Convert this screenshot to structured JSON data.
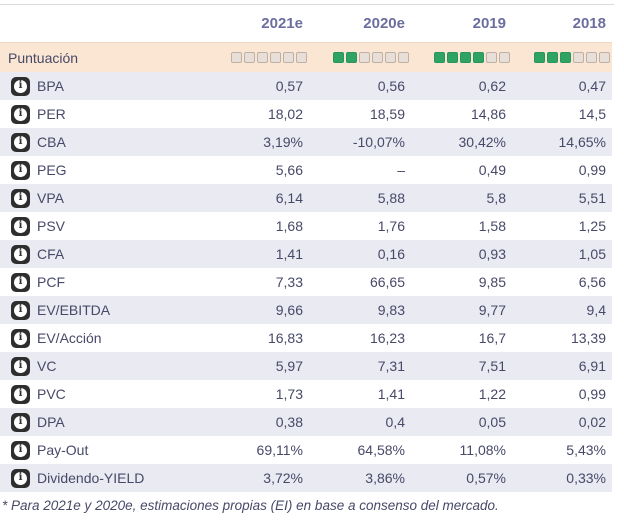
{
  "table": {
    "columns": [
      "2021e",
      "2020e",
      "2019",
      "2018"
    ],
    "score_row": {
      "label": "Puntuación",
      "max_squares": 6,
      "filled": [
        0,
        2,
        4,
        3
      ]
    },
    "rows": [
      {
        "label": "BPA",
        "values": [
          "0,57",
          "0,56",
          "0,62",
          "0,47"
        ]
      },
      {
        "label": "PER",
        "values": [
          "18,02",
          "18,59",
          "14,86",
          "14,5"
        ]
      },
      {
        "label": "CBA",
        "values": [
          "3,19%",
          "-10,07%",
          "30,42%",
          "14,65%"
        ]
      },
      {
        "label": "PEG",
        "values": [
          "5,66",
          "–",
          "0,49",
          "0,99"
        ]
      },
      {
        "label": "VPA",
        "values": [
          "6,14",
          "5,88",
          "5,8",
          "5,51"
        ]
      },
      {
        "label": "PSV",
        "values": [
          "1,68",
          "1,76",
          "1,58",
          "1,25"
        ]
      },
      {
        "label": "CFA",
        "values": [
          "1,41",
          "0,16",
          "0,93",
          "1,05"
        ]
      },
      {
        "label": "PCF",
        "values": [
          "7,33",
          "66,65",
          "9,85",
          "6,56"
        ]
      },
      {
        "label": "EV/EBITDA",
        "values": [
          "9,66",
          "9,83",
          "9,77",
          "9,4"
        ]
      },
      {
        "label": "EV/Acción",
        "values": [
          "16,83",
          "16,23",
          "16,7",
          "13,39"
        ]
      },
      {
        "label": "VC",
        "values": [
          "5,97",
          "7,31",
          "7,51",
          "6,91"
        ]
      },
      {
        "label": "PVC",
        "values": [
          "1,73",
          "1,41",
          "1,22",
          "0,99"
        ]
      },
      {
        "label": "DPA",
        "values": [
          "0,38",
          "0,4",
          "0,05",
          "0,02"
        ]
      },
      {
        "label": "Pay-Out",
        "values": [
          "69,11%",
          "64,58%",
          "11,08%",
          "5,43%"
        ]
      },
      {
        "label": "Dividendo-YIELD",
        "values": [
          "3,72%",
          "3,86%",
          "0,57%",
          "0,33%"
        ]
      }
    ],
    "footnote": "* Para 2021e y 2020e, estimaciones propias (EI) en base a consenso del mercado.",
    "info_icon_glyph": "i"
  },
  "colors": {
    "score_row_bg": "#fbe6d3",
    "alt_row_bg": "#e9eaf2",
    "square_filled": "#2fa363",
    "square_empty": "#e7dfd8",
    "header_text": "#6b6e9f",
    "body_text": "#474968",
    "info_badge_bg": "#2e2e2e"
  }
}
